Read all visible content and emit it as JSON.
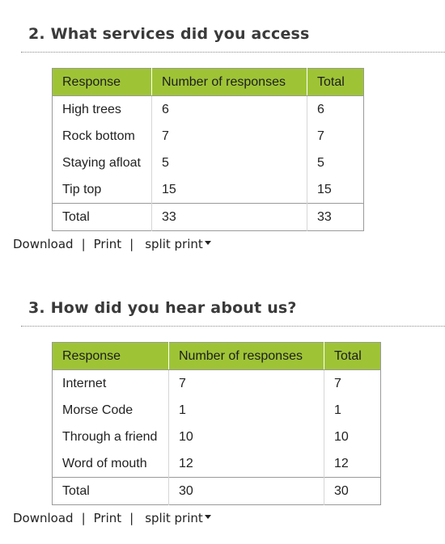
{
  "questions": [
    {
      "title": "2. What services did you access",
      "headers": [
        "Response",
        "Number of responses",
        "Total"
      ],
      "rows": [
        [
          "High trees",
          "6",
          "6"
        ],
        [
          "Rock bottom",
          "7",
          "7"
        ],
        [
          "Staying afloat",
          "5",
          "5"
        ],
        [
          "Tip top",
          "15",
          "15"
        ]
      ],
      "total": [
        "Total",
        "33",
        "33"
      ],
      "actions": {
        "download": "Download",
        "print": "Print",
        "split_print": "split print",
        "separator": "|"
      }
    },
    {
      "title": "3. How did you hear about us?",
      "headers": [
        "Response",
        "Number of responses",
        "Total"
      ],
      "rows": [
        [
          "Internet",
          "7",
          "7"
        ],
        [
          "Morse Code",
          "1",
          "1"
        ],
        [
          "Through a friend",
          "10",
          "10"
        ],
        [
          "Word of mouth",
          "12",
          "12"
        ]
      ],
      "total": [
        "Total",
        "30",
        "30"
      ],
      "actions": {
        "download": "Download",
        "print": "Print",
        "split_print": "split print",
        "separator": "|"
      }
    }
  ],
  "colors": {
    "header_bg": "#9ec436",
    "alt_row_bg": "#f3f8e3",
    "border": "#9a9a9a"
  },
  "icons": {
    "split_print_caret": "caret-down-icon"
  }
}
